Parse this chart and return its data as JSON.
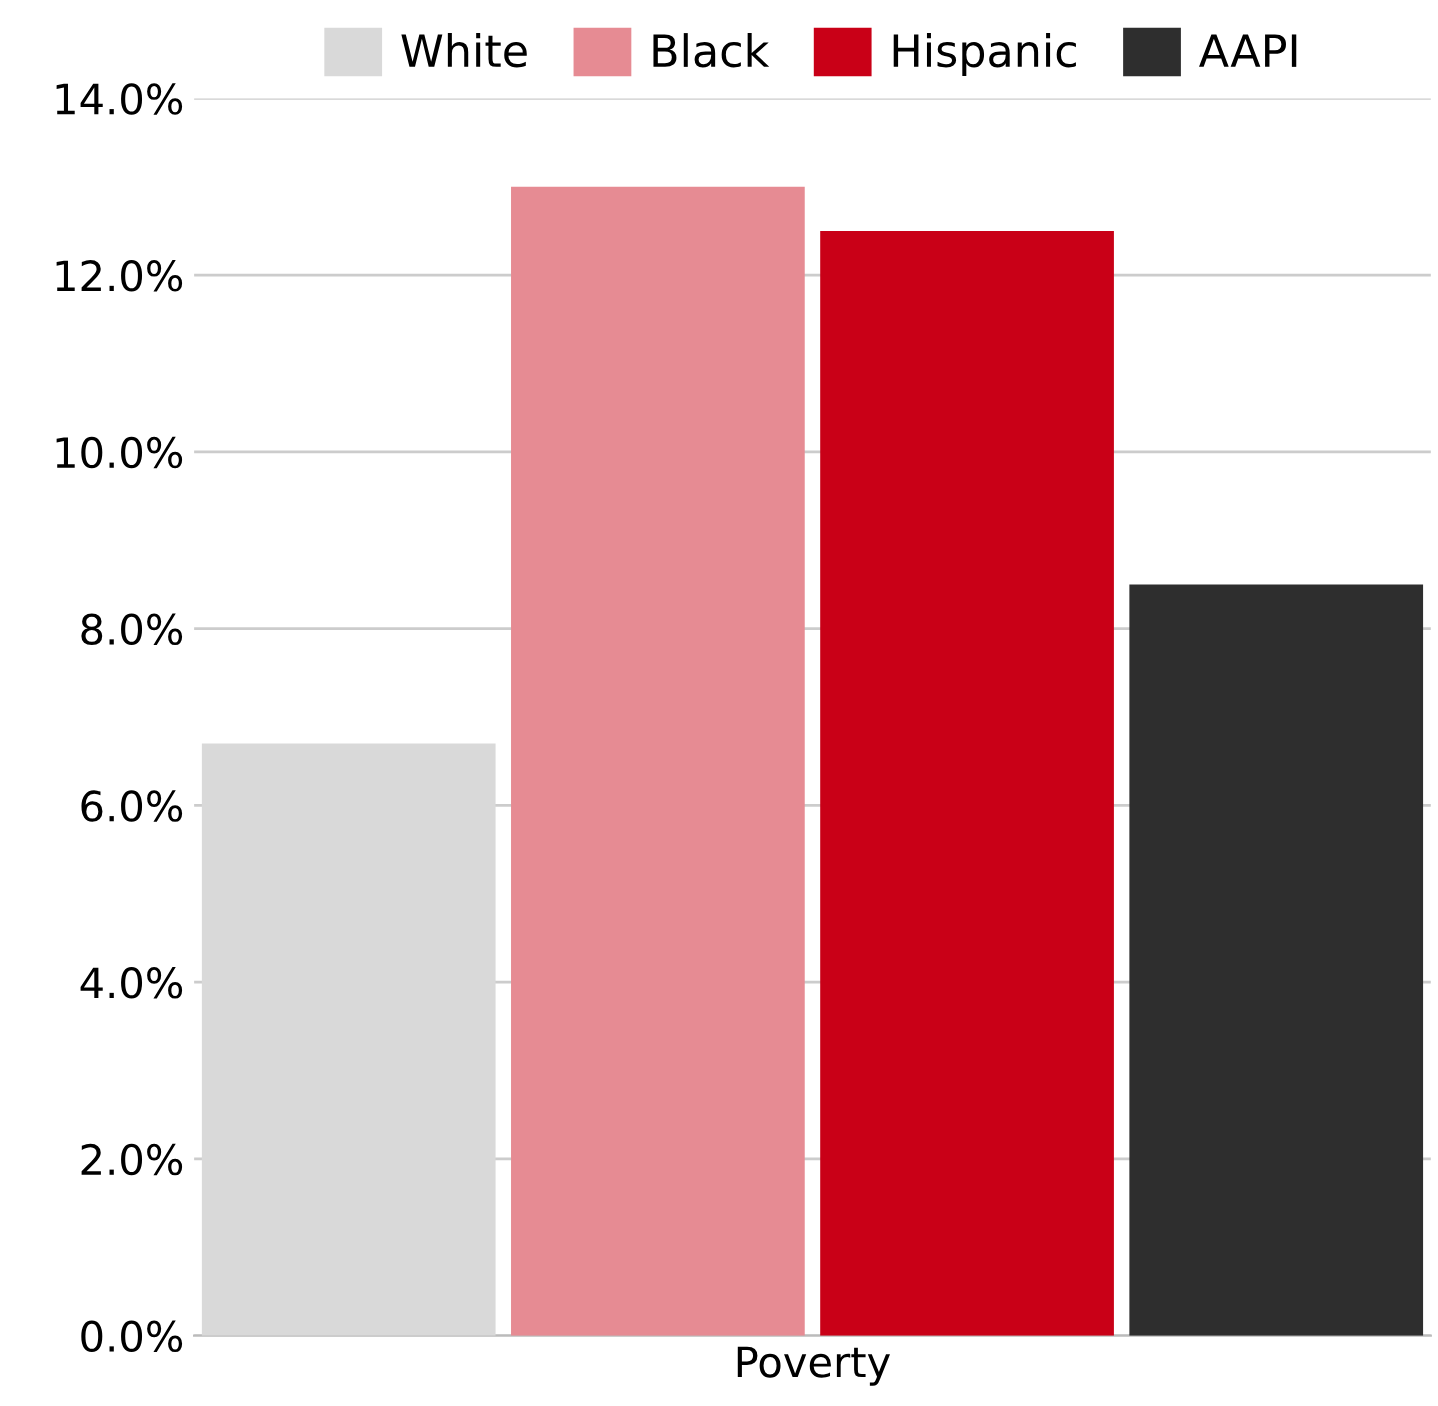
{
  "chart_data": {
    "type": "bar",
    "categories": [
      "Poverty"
    ],
    "series": [
      {
        "name": "White",
        "color": "#d9d9d9",
        "values": [
          6.7
        ]
      },
      {
        "name": "Black",
        "color": "#e68b93",
        "values": [
          13.0
        ]
      },
      {
        "name": "Hispanic",
        "color": "#c90017",
        "values": [
          12.5
        ]
      },
      {
        "name": "AAPI",
        "color": "#2e2e2e",
        "values": [
          8.5
        ]
      }
    ],
    "ylim": [
      0,
      14
    ],
    "yticks": [
      {
        "value": 0,
        "label": "0.0%"
      },
      {
        "value": 2,
        "label": "2.0%"
      },
      {
        "value": 4,
        "label": "4.0%"
      },
      {
        "value": 6,
        "label": "6.0%"
      },
      {
        "value": 8,
        "label": "8.0%"
      },
      {
        "value": 10,
        "label": "10.0%"
      },
      {
        "value": 12,
        "label": "12.0%"
      },
      {
        "value": 14,
        "label": "14.0%"
      }
    ],
    "grid": "y",
    "legend": "top"
  }
}
